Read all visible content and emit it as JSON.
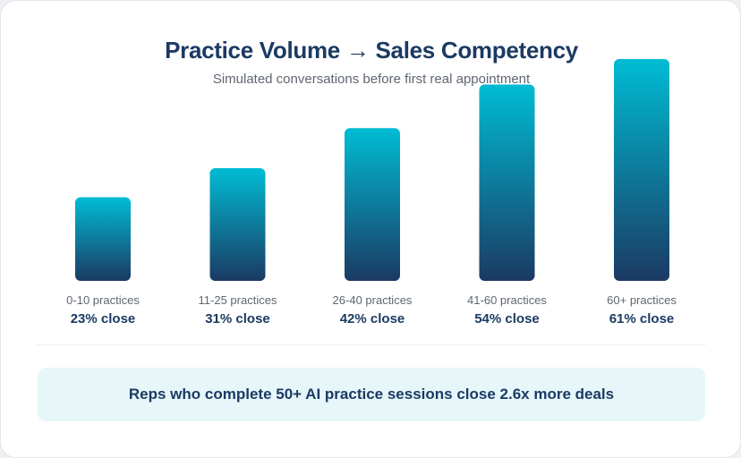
{
  "title": "Practice Volume → Sales Competency",
  "subtitle": "Simulated conversations before first real appointment",
  "callout": "Reps who complete 50+ AI practice sessions close 2.6x more deals",
  "colors": {
    "bar_top": "#00bcd4",
    "bar_bottom": "#1b3a63",
    "title": "#1b3a63",
    "callout_bg": "#e6f6f9"
  },
  "chart_data": {
    "type": "bar",
    "title": "Practice Volume → Sales Competency",
    "subtitle": "Simulated conversations before first real appointment",
    "categories": [
      "0-10 practices",
      "11-25 practices",
      "26-40 practices",
      "41-60 practices",
      "60+ practices"
    ],
    "values": [
      23,
      31,
      42,
      54,
      61
    ],
    "value_labels": [
      "23% close",
      "31% close",
      "42% close",
      "54% close",
      "61% close"
    ],
    "xlabel": "",
    "ylabel": "",
    "grid": false
  }
}
